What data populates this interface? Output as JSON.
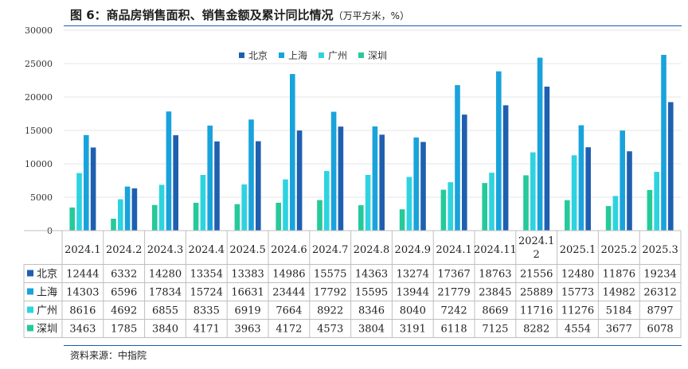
{
  "header": {
    "title": "图 6：商品房销售面积、销售金额及累计同比情况",
    "unit": "（万平方米，%）"
  },
  "footer": {
    "source": "资料来源：中指院"
  },
  "colors": {
    "北京": "#1f5fb0",
    "上海": "#19a3dc",
    "广州": "#2ed3e0",
    "深圳": "#26c99a",
    "axis": "#bfbfbf",
    "grid": "#e4e4e4",
    "rule": "#1a5ea8"
  },
  "chart_data": {
    "type": "bar",
    "title": "图 6：商品房销售面积、销售金额及累计同比情况",
    "xlabel": "",
    "ylabel": "",
    "ylim": [
      0,
      30000
    ],
    "yticks": [
      0,
      5000,
      10000,
      15000,
      20000,
      25000,
      30000
    ],
    "legend_position": "top-center",
    "legend": [
      "北京",
      "上海",
      "广州",
      "深圳"
    ],
    "categories": [
      "2024.1",
      "2024.2",
      "2024.3",
      "2024.4",
      "2024.5",
      "2024.6",
      "2024.7",
      "2024.8",
      "2024.9",
      "2024.1",
      "2024.11",
      "2024.1\n2",
      "2025.1",
      "2025.2",
      "2025.3"
    ],
    "series": [
      {
        "name": "北京",
        "values": [
          12444,
          6332,
          14280,
          13354,
          13383,
          14986,
          15575,
          14363,
          13274,
          17367,
          18763,
          21556,
          12480,
          11876,
          19234
        ]
      },
      {
        "name": "上海",
        "values": [
          14303,
          6596,
          17834,
          15724,
          16631,
          23444,
          17792,
          15595,
          13944,
          21779,
          23845,
          25889,
          15773,
          14982,
          26312
        ]
      },
      {
        "name": "广州",
        "values": [
          8616,
          4692,
          6855,
          8335,
          6919,
          7664,
          8922,
          8346,
          8040,
          7242,
          8669,
          11716,
          11276,
          5184,
          8797
        ]
      },
      {
        "name": "深圳",
        "values": [
          3463,
          1785,
          3840,
          4171,
          3963,
          4172,
          4573,
          3804,
          3191,
          6118,
          7125,
          8282,
          4554,
          3677,
          6078
        ]
      }
    ],
    "bar_order": [
      "深圳",
      "广州",
      "上海",
      "北京"
    ],
    "table_order": [
      "北京",
      "上海",
      "广州",
      "深圳"
    ]
  }
}
